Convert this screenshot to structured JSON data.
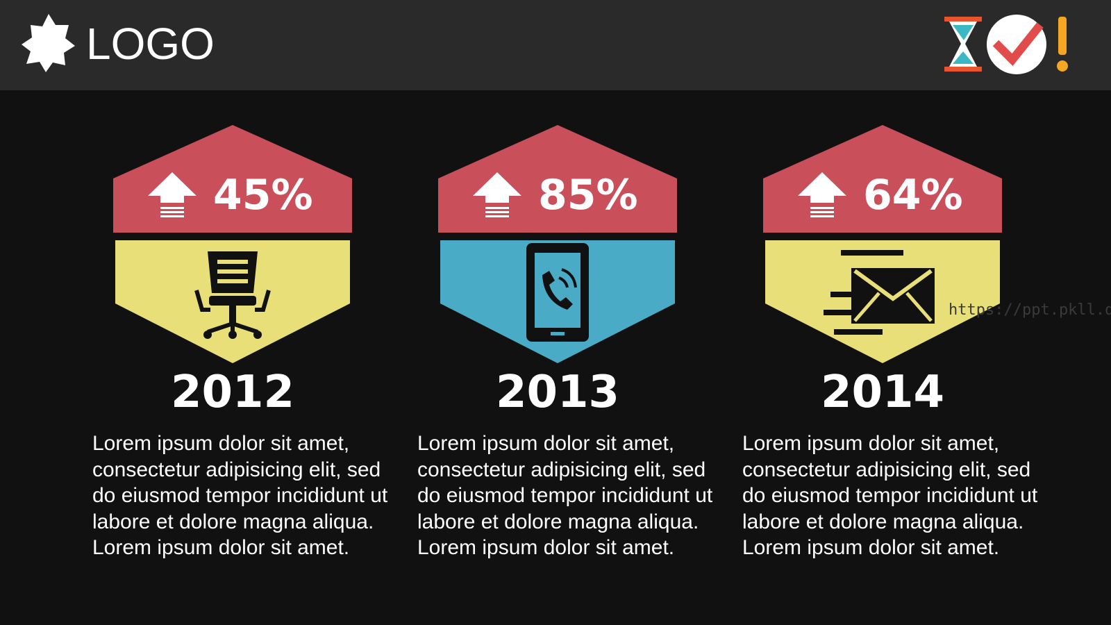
{
  "header": {
    "logo": "LOGO"
  },
  "watermark": "https://ppt.pkll.de",
  "cards": [
    {
      "percent": "45%",
      "year": "2012",
      "text": "Lorem ipsum dolor sit amet, consectetur adipisicing elit, sed do eiusmod tempor incididunt ut labore et dolore magna aliqua. Lorem ipsum dolor sit amet."
    },
    {
      "percent": "85%",
      "year": "2013",
      "text": "Lorem ipsum dolor sit amet, consectetur adipisicing elit, sed do eiusmod tempor incididunt ut labore et dolore magna aliqua. Lorem ipsum dolor sit amet."
    },
    {
      "percent": "64%",
      "year": "2014",
      "text": "Lorem ipsum dolor sit amet, consectetur adipisicing elit, sed do eiusmod tempor incididunt ut labore et dolore magna aliqua. Lorem ipsum dolor sit amet."
    }
  ]
}
